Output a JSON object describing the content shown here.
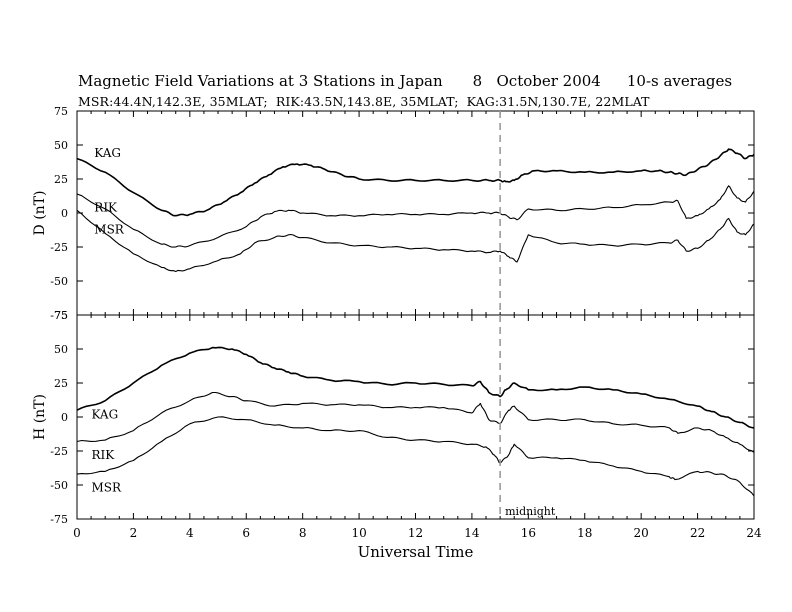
{
  "title": {
    "main": "Magnetic Field Variations at 3 Stations in Japan",
    "date": "8   October 2004",
    "averaging": "10-s averages",
    "stations": "MSR:44.4N,142.3E, 35MLAT;  RIK:43.5N,143.8E, 35MLAT;  KAG:31.5N,130.7E, 22MLAT"
  },
  "chart_data": [
    {
      "type": "line",
      "ylabel": "D (nT)",
      "ylim": [
        -75,
        75
      ],
      "yticks": [
        75,
        50,
        25,
        0,
        -25,
        -50,
        -75
      ],
      "xlim": [
        0,
        24
      ],
      "xticks": [
        0,
        2,
        4,
        6,
        8,
        10,
        12,
        14,
        16,
        18,
        20,
        22,
        24
      ],
      "series": [
        {
          "name": "KAG",
          "label_at": [
            0.4,
            44
          ],
          "x": [
            0,
            1,
            2,
            3,
            3.5,
            4,
            4.6,
            5.2,
            5.8,
            6.3,
            6.8,
            7.3,
            7.8,
            8.3,
            8.8,
            9.4,
            10,
            11,
            12,
            13,
            14,
            14.6,
            15,
            15.2,
            15.5,
            15.8,
            16.2,
            17,
            18,
            19,
            20,
            20.6,
            21,
            21.3,
            21.6,
            22,
            22.4,
            22.8,
            23.1,
            23.4,
            23.7,
            24
          ],
          "y": [
            40,
            30,
            15,
            2,
            -2,
            -1,
            2,
            8,
            15,
            22,
            28,
            34,
            36,
            35,
            32,
            28,
            25,
            24,
            24,
            24,
            24,
            24,
            24,
            23,
            24,
            28,
            31,
            31,
            30,
            30,
            31,
            31,
            30,
            29,
            28,
            32,
            36,
            42,
            47,
            44,
            40,
            43
          ]
        },
        {
          "name": "RIK",
          "label_at": [
            0.4,
            4
          ],
          "x": [
            0,
            1,
            2,
            3,
            3.5,
            4,
            5,
            6,
            6.5,
            7,
            7.5,
            8,
            9,
            10,
            11,
            12,
            13,
            14,
            14.6,
            15,
            15.3,
            15.6,
            16,
            17,
            18,
            19,
            20,
            21,
            21.3,
            21.6,
            22,
            22.4,
            22.8,
            23.1,
            23.4,
            23.7,
            24
          ],
          "y": [
            14,
            3,
            -12,
            -23,
            -25,
            -24,
            -18,
            -10,
            -3,
            1,
            2,
            0,
            -2,
            -2,
            -1,
            -1,
            -1,
            0,
            0,
            0,
            -3,
            -5,
            3,
            2,
            3,
            4,
            6,
            8,
            9,
            -4,
            -2,
            3,
            10,
            20,
            11,
            8,
            16
          ]
        },
        {
          "name": "MSR",
          "label_at": [
            0.4,
            -12
          ],
          "x": [
            0,
            1,
            2,
            3,
            3.5,
            4,
            5,
            5.8,
            6.3,
            7,
            7.5,
            8,
            9,
            10,
            11,
            12,
            13,
            14,
            14.6,
            15,
            15.3,
            15.6,
            16,
            17,
            18,
            19,
            20,
            21,
            21.3,
            21.6,
            22,
            22.4,
            22.8,
            23.1,
            23.4,
            23.7,
            24
          ],
          "y": [
            2,
            -15,
            -30,
            -40,
            -43,
            -41,
            -35,
            -30,
            -22,
            -18,
            -16,
            -18,
            -22,
            -24,
            -25,
            -26,
            -27,
            -28,
            -29,
            -28,
            -32,
            -36,
            -16,
            -22,
            -23,
            -24,
            -23,
            -22,
            -20,
            -28,
            -26,
            -20,
            -12,
            -4,
            -14,
            -16,
            -8
          ]
        }
      ]
    },
    {
      "type": "line",
      "ylabel": "H (nT)",
      "ylim": [
        -75,
        75
      ],
      "yticks": [
        75,
        50,
        25,
        0,
        -25,
        -50,
        -75
      ],
      "xlim": [
        0,
        24
      ],
      "xticks": [
        0,
        2,
        4,
        6,
        8,
        10,
        12,
        14,
        16,
        18,
        20,
        22,
        24
      ],
      "xticklabels": [
        "0",
        "2",
        "4",
        "6",
        "8",
        "10",
        "12",
        "14",
        "16",
        "18",
        "20",
        "22",
        "24"
      ],
      "xlabel": "Universal Time",
      "annotation": {
        "text": "midnight",
        "x": 15
      },
      "series": [
        {
          "name": "KAG",
          "label_at": [
            0.3,
            2
          ],
          "x": [
            0,
            1,
            2,
            3,
            4,
            4.8,
            5.5,
            6,
            6.5,
            7,
            7.5,
            8,
            9,
            10,
            11,
            12,
            13,
            14,
            14.3,
            14.6,
            15,
            15.2,
            15.5,
            16,
            17,
            18,
            19,
            20,
            21,
            22,
            22.5,
            23,
            23.5,
            24
          ],
          "y": [
            5,
            12,
            25,
            38,
            47,
            51,
            50,
            46,
            40,
            36,
            33,
            30,
            27,
            26,
            24,
            25,
            24,
            23,
            26,
            18,
            15,
            20,
            25,
            20,
            20,
            22,
            20,
            17,
            13,
            8,
            4,
            0,
            -4,
            -8
          ]
        },
        {
          "name": "RIK",
          "label_at": [
            0.3,
            -28
          ],
          "x": [
            0,
            1,
            2,
            3,
            4,
            4.8,
            5.5,
            6,
            7,
            8,
            9,
            10,
            11,
            12,
            13,
            14,
            14.3,
            14.6,
            15,
            15.3,
            15.5,
            16,
            17,
            18,
            19,
            20,
            21,
            21.3,
            22,
            22.5,
            23,
            23.5,
            24
          ],
          "y": [
            -18,
            -17,
            -10,
            3,
            12,
            18,
            15,
            12,
            8,
            10,
            9,
            9,
            7,
            7,
            7,
            3,
            10,
            -2,
            -5,
            5,
            8,
            -2,
            -2,
            -2,
            -5,
            -6,
            -8,
            -12,
            -8,
            -10,
            -15,
            -20,
            -26
          ]
        },
        {
          "name": "MSR",
          "label_at": [
            0.3,
            -52
          ],
          "x": [
            0,
            1,
            2,
            3,
            4,
            5,
            6,
            7,
            8,
            9,
            10,
            11,
            12,
            13,
            14,
            14.5,
            14.8,
            15,
            15.3,
            15.5,
            16,
            17,
            18,
            19,
            20,
            21,
            21.2,
            22,
            22.5,
            23,
            23.5,
            24
          ],
          "y": [
            -42,
            -40,
            -32,
            -18,
            -5,
            0,
            -2,
            -6,
            -8,
            -10,
            -10,
            -15,
            -17,
            -18,
            -20,
            -22,
            -28,
            -34,
            -28,
            -20,
            -30,
            -30,
            -32,
            -36,
            -40,
            -44,
            -46,
            -40,
            -41,
            -43,
            -48,
            -58
          ]
        }
      ]
    }
  ]
}
